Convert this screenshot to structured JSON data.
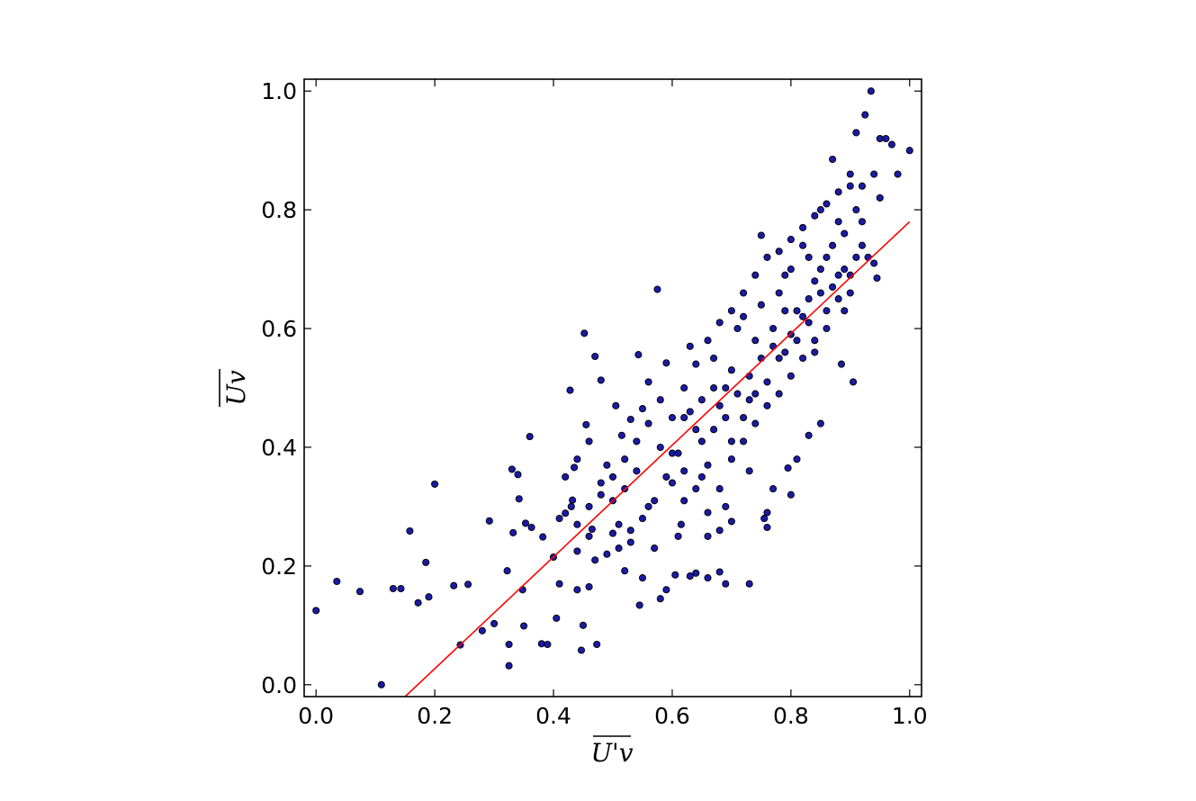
{
  "chart_data": {
    "type": "scatter",
    "xlabel": "U'v",
    "ylabel": "Uv",
    "xlim": [
      -0.02,
      1.02
    ],
    "ylim": [
      -0.02,
      1.02
    ],
    "xticks": [
      "0.0",
      "0.2",
      "0.4",
      "0.6",
      "0.8",
      "1.0"
    ],
    "yticks": [
      "0.0",
      "0.2",
      "0.4",
      "0.6",
      "0.8",
      "1.0"
    ],
    "grid": false,
    "marker_color": "#1a1aa6",
    "marker_edge": "#000000",
    "fit_line_color": "#ff0000",
    "fit_line": {
      "x": [
        0.15,
        1.0
      ],
      "y": [
        -0.02,
        0.78
      ]
    },
    "points": [
      [
        0.0,
        0.125
      ],
      [
        0.035,
        0.174
      ],
      [
        0.074,
        0.157
      ],
      [
        0.11,
        0.0
      ],
      [
        0.13,
        0.162
      ],
      [
        0.143,
        0.162
      ],
      [
        0.158,
        0.259
      ],
      [
        0.172,
        0.138
      ],
      [
        0.185,
        0.206
      ],
      [
        0.19,
        0.148
      ],
      [
        0.2,
        0.338
      ],
      [
        0.232,
        0.167
      ],
      [
        0.243,
        0.067
      ],
      [
        0.256,
        0.169
      ],
      [
        0.28,
        0.091
      ],
      [
        0.292,
        0.276
      ],
      [
        0.3,
        0.103
      ],
      [
        0.322,
        0.192
      ],
      [
        0.325,
        0.068
      ],
      [
        0.325,
        0.032
      ],
      [
        0.33,
        0.363
      ],
      [
        0.332,
        0.256
      ],
      [
        0.34,
        0.354
      ],
      [
        0.342,
        0.313
      ],
      [
        0.348,
        0.16
      ],
      [
        0.35,
        0.099
      ],
      [
        0.353,
        0.272
      ],
      [
        0.36,
        0.418
      ],
      [
        0.363,
        0.265
      ],
      [
        0.38,
        0.069
      ],
      [
        0.382,
        0.249
      ],
      [
        0.39,
        0.068
      ],
      [
        0.4,
        0.215
      ],
      [
        0.405,
        0.112
      ],
      [
        0.41,
        0.17
      ],
      [
        0.42,
        0.289
      ],
      [
        0.428,
        0.496
      ],
      [
        0.432,
        0.311
      ],
      [
        0.435,
        0.366
      ],
      [
        0.44,
        0.225
      ],
      [
        0.447,
        0.058
      ],
      [
        0.452,
        0.592
      ],
      [
        0.455,
        0.438
      ],
      [
        0.46,
        0.165
      ],
      [
        0.465,
        0.262
      ],
      [
        0.47,
        0.553
      ],
      [
        0.473,
        0.068
      ],
      [
        0.48,
        0.513
      ],
      [
        0.49,
        0.37
      ],
      [
        0.5,
        0.255
      ],
      [
        0.505,
        0.47
      ],
      [
        0.515,
        0.42
      ],
      [
        0.52,
        0.192
      ],
      [
        0.53,
        0.447
      ],
      [
        0.543,
        0.556
      ],
      [
        0.545,
        0.134
      ],
      [
        0.55,
        0.465
      ],
      [
        0.56,
        0.51
      ],
      [
        0.575,
        0.666
      ],
      [
        0.58,
        0.145
      ],
      [
        0.59,
        0.542
      ],
      [
        0.6,
        0.39
      ],
      [
        0.605,
        0.185
      ],
      [
        0.61,
        0.25
      ],
      [
        0.62,
        0.45
      ],
      [
        0.63,
        0.57
      ],
      [
        0.65,
        0.35
      ],
      [
        0.66,
        0.25
      ],
      [
        0.67,
        0.5
      ],
      [
        0.68,
        0.19
      ],
      [
        0.69,
        0.17
      ],
      [
        0.7,
        0.41
      ],
      [
        0.72,
        0.62
      ],
      [
        0.73,
        0.17
      ],
      [
        0.74,
        0.49
      ],
      [
        0.75,
        0.757
      ],
      [
        0.76,
        0.29
      ],
      [
        0.77,
        0.33
      ],
      [
        0.78,
        0.55
      ],
      [
        0.79,
        0.63
      ],
      [
        0.8,
        0.7
      ],
      [
        0.81,
        0.38
      ],
      [
        0.82,
        0.74
      ],
      [
        0.83,
        0.65
      ],
      [
        0.84,
        0.56
      ],
      [
        0.85,
        0.8
      ],
      [
        0.86,
        0.72
      ],
      [
        0.87,
        0.885
      ],
      [
        0.88,
        0.69
      ],
      [
        0.885,
        0.54
      ],
      [
        0.89,
        0.76
      ],
      [
        0.9,
        0.84
      ],
      [
        0.905,
        0.51
      ],
      [
        0.91,
        0.93
      ],
      [
        0.92,
        0.78
      ],
      [
        0.925,
        0.96
      ],
      [
        0.93,
        0.72
      ],
      [
        0.935,
        1.0
      ],
      [
        0.94,
        0.86
      ],
      [
        0.945,
        0.685
      ],
      [
        0.95,
        0.92
      ],
      [
        0.96,
        0.92
      ],
      [
        0.98,
        0.86
      ],
      [
        1.0,
        0.9
      ],
      [
        0.97,
        0.91
      ],
      [
        0.85,
        0.44
      ],
      [
        0.83,
        0.42
      ],
      [
        0.8,
        0.32
      ],
      [
        0.795,
        0.365
      ],
      [
        0.76,
        0.265
      ],
      [
        0.755,
        0.28
      ],
      [
        0.73,
        0.36
      ],
      [
        0.7,
        0.275
      ],
      [
        0.69,
        0.3
      ],
      [
        0.68,
        0.26
      ],
      [
        0.66,
        0.18
      ],
      [
        0.64,
        0.188
      ],
      [
        0.63,
        0.183
      ],
      [
        0.615,
        0.27
      ],
      [
        0.59,
        0.16
      ],
      [
        0.57,
        0.23
      ],
      [
        0.55,
        0.18
      ],
      [
        0.53,
        0.24
      ],
      [
        0.51,
        0.27
      ],
      [
        0.49,
        0.22
      ],
      [
        0.47,
        0.21
      ],
      [
        0.46,
        0.25
      ],
      [
        0.45,
        0.1
      ],
      [
        0.44,
        0.16
      ],
      [
        0.43,
        0.3
      ],
      [
        0.42,
        0.35
      ],
      [
        0.41,
        0.28
      ],
      [
        0.44,
        0.38
      ],
      [
        0.46,
        0.41
      ],
      [
        0.48,
        0.34
      ],
      [
        0.5,
        0.31
      ],
      [
        0.52,
        0.33
      ],
      [
        0.54,
        0.36
      ],
      [
        0.56,
        0.3
      ],
      [
        0.58,
        0.4
      ],
      [
        0.6,
        0.34
      ],
      [
        0.62,
        0.31
      ],
      [
        0.64,
        0.43
      ],
      [
        0.66,
        0.37
      ],
      [
        0.68,
        0.47
      ],
      [
        0.7,
        0.53
      ],
      [
        0.72,
        0.45
      ],
      [
        0.74,
        0.58
      ],
      [
        0.76,
        0.51
      ],
      [
        0.78,
        0.66
      ],
      [
        0.8,
        0.59
      ],
      [
        0.82,
        0.62
      ],
      [
        0.84,
        0.68
      ],
      [
        0.86,
        0.6
      ],
      [
        0.88,
        0.78
      ],
      [
        0.9,
        0.66
      ],
      [
        0.92,
        0.84
      ],
      [
        0.94,
        0.71
      ],
      [
        0.95,
        0.82
      ],
      [
        0.63,
        0.46
      ],
      [
        0.65,
        0.41
      ],
      [
        0.67,
        0.55
      ],
      [
        0.69,
        0.5
      ],
      [
        0.71,
        0.6
      ],
      [
        0.73,
        0.52
      ],
      [
        0.75,
        0.64
      ],
      [
        0.77,
        0.57
      ],
      [
        0.79,
        0.69
      ],
      [
        0.81,
        0.63
      ],
      [
        0.83,
        0.72
      ],
      [
        0.85,
        0.66
      ],
      [
        0.87,
        0.74
      ],
      [
        0.89,
        0.7
      ],
      [
        0.91,
        0.8
      ],
      [
        0.61,
        0.39
      ],
      [
        0.59,
        0.35
      ],
      [
        0.57,
        0.31
      ],
      [
        0.55,
        0.28
      ],
      [
        0.53,
        0.26
      ],
      [
        0.51,
        0.23
      ],
      [
        0.62,
        0.36
      ],
      [
        0.64,
        0.33
      ],
      [
        0.66,
        0.29
      ],
      [
        0.68,
        0.33
      ],
      [
        0.7,
        0.38
      ],
      [
        0.72,
        0.41
      ],
      [
        0.74,
        0.44
      ],
      [
        0.76,
        0.47
      ],
      [
        0.78,
        0.49
      ],
      [
        0.8,
        0.52
      ],
      [
        0.82,
        0.55
      ],
      [
        0.84,
        0.58
      ],
      [
        0.86,
        0.63
      ],
      [
        0.88,
        0.65
      ],
      [
        0.9,
        0.69
      ],
      [
        0.92,
        0.74
      ],
      [
        0.6,
        0.45
      ],
      [
        0.62,
        0.5
      ],
      [
        0.64,
        0.54
      ],
      [
        0.66,
        0.58
      ],
      [
        0.68,
        0.61
      ],
      [
        0.7,
        0.63
      ],
      [
        0.72,
        0.66
      ],
      [
        0.74,
        0.69
      ],
      [
        0.76,
        0.72
      ],
      [
        0.78,
        0.73
      ],
      [
        0.8,
        0.75
      ],
      [
        0.82,
        0.77
      ],
      [
        0.84,
        0.79
      ],
      [
        0.86,
        0.81
      ],
      [
        0.88,
        0.83
      ],
      [
        0.9,
        0.86
      ],
      [
        0.58,
        0.48
      ],
      [
        0.56,
        0.44
      ],
      [
        0.54,
        0.41
      ],
      [
        0.52,
        0.38
      ],
      [
        0.5,
        0.35
      ],
      [
        0.48,
        0.32
      ],
      [
        0.46,
        0.3
      ],
      [
        0.44,
        0.27
      ],
      [
        0.65,
        0.48
      ],
      [
        0.67,
        0.43
      ],
      [
        0.69,
        0.45
      ],
      [
        0.71,
        0.49
      ],
      [
        0.73,
        0.48
      ],
      [
        0.75,
        0.55
      ],
      [
        0.77,
        0.6
      ],
      [
        0.79,
        0.56
      ],
      [
        0.81,
        0.58
      ],
      [
        0.83,
        0.61
      ],
      [
        0.85,
        0.7
      ],
      [
        0.87,
        0.67
      ],
      [
        0.89,
        0.63
      ],
      [
        0.91,
        0.72
      ]
    ]
  }
}
